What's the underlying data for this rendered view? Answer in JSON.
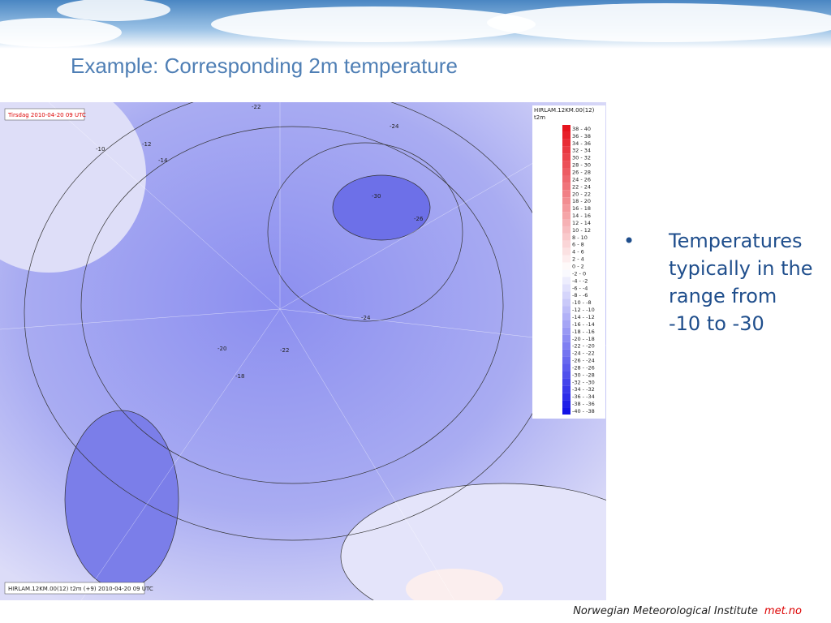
{
  "slide": {
    "title": "Example: Corresponding 2m temperature",
    "map": {
      "timestamp": "Tirsdag 2010-04-20 09 UTC",
      "model": "HIRLAM.12KM.00(12)",
      "field": "t2m",
      "caption": "HIRLAM.12KM.00(12) t2m (+9) 2010-04-20 09 UTC",
      "legend": [
        "38 - 40",
        "36 - 38",
        "34 - 36",
        "32 - 34",
        "30 - 32",
        "28 - 30",
        "26 - 28",
        "24 - 26",
        "22 - 24",
        "20 - 22",
        "18 - 20",
        "16 - 18",
        "14 - 16",
        "12 - 14",
        "10 - 12",
        "8 - 10",
        "6 - 8",
        "4 - 6",
        "2 - 4",
        "0 - 2",
        "-2 - 0",
        "-4 - -2",
        "-6 - -4",
        "-8 - -6",
        "-10 - -8",
        "-12 - -10",
        "-14 - -12",
        "-16 - -14",
        "-18 - -16",
        "-20 - -18",
        "-22 - -20",
        "-24 - -22",
        "-26 - -24",
        "-28 - -26",
        "-30 - -28",
        "-32 - -30",
        "-34 - -32",
        "-36 - -34",
        "-38 - -36",
        "-40 - -38"
      ],
      "contour_labels": [
        "-22",
        "-24",
        "-30",
        "-26",
        "-12",
        "-10",
        "-14",
        "-18",
        "-20",
        "-22",
        "-24"
      ]
    },
    "bullet": "Temperatures typically in the range from -10 to -30",
    "footer": {
      "organization": "Norwegian Meteorological Institute",
      "site": "met.no"
    }
  }
}
